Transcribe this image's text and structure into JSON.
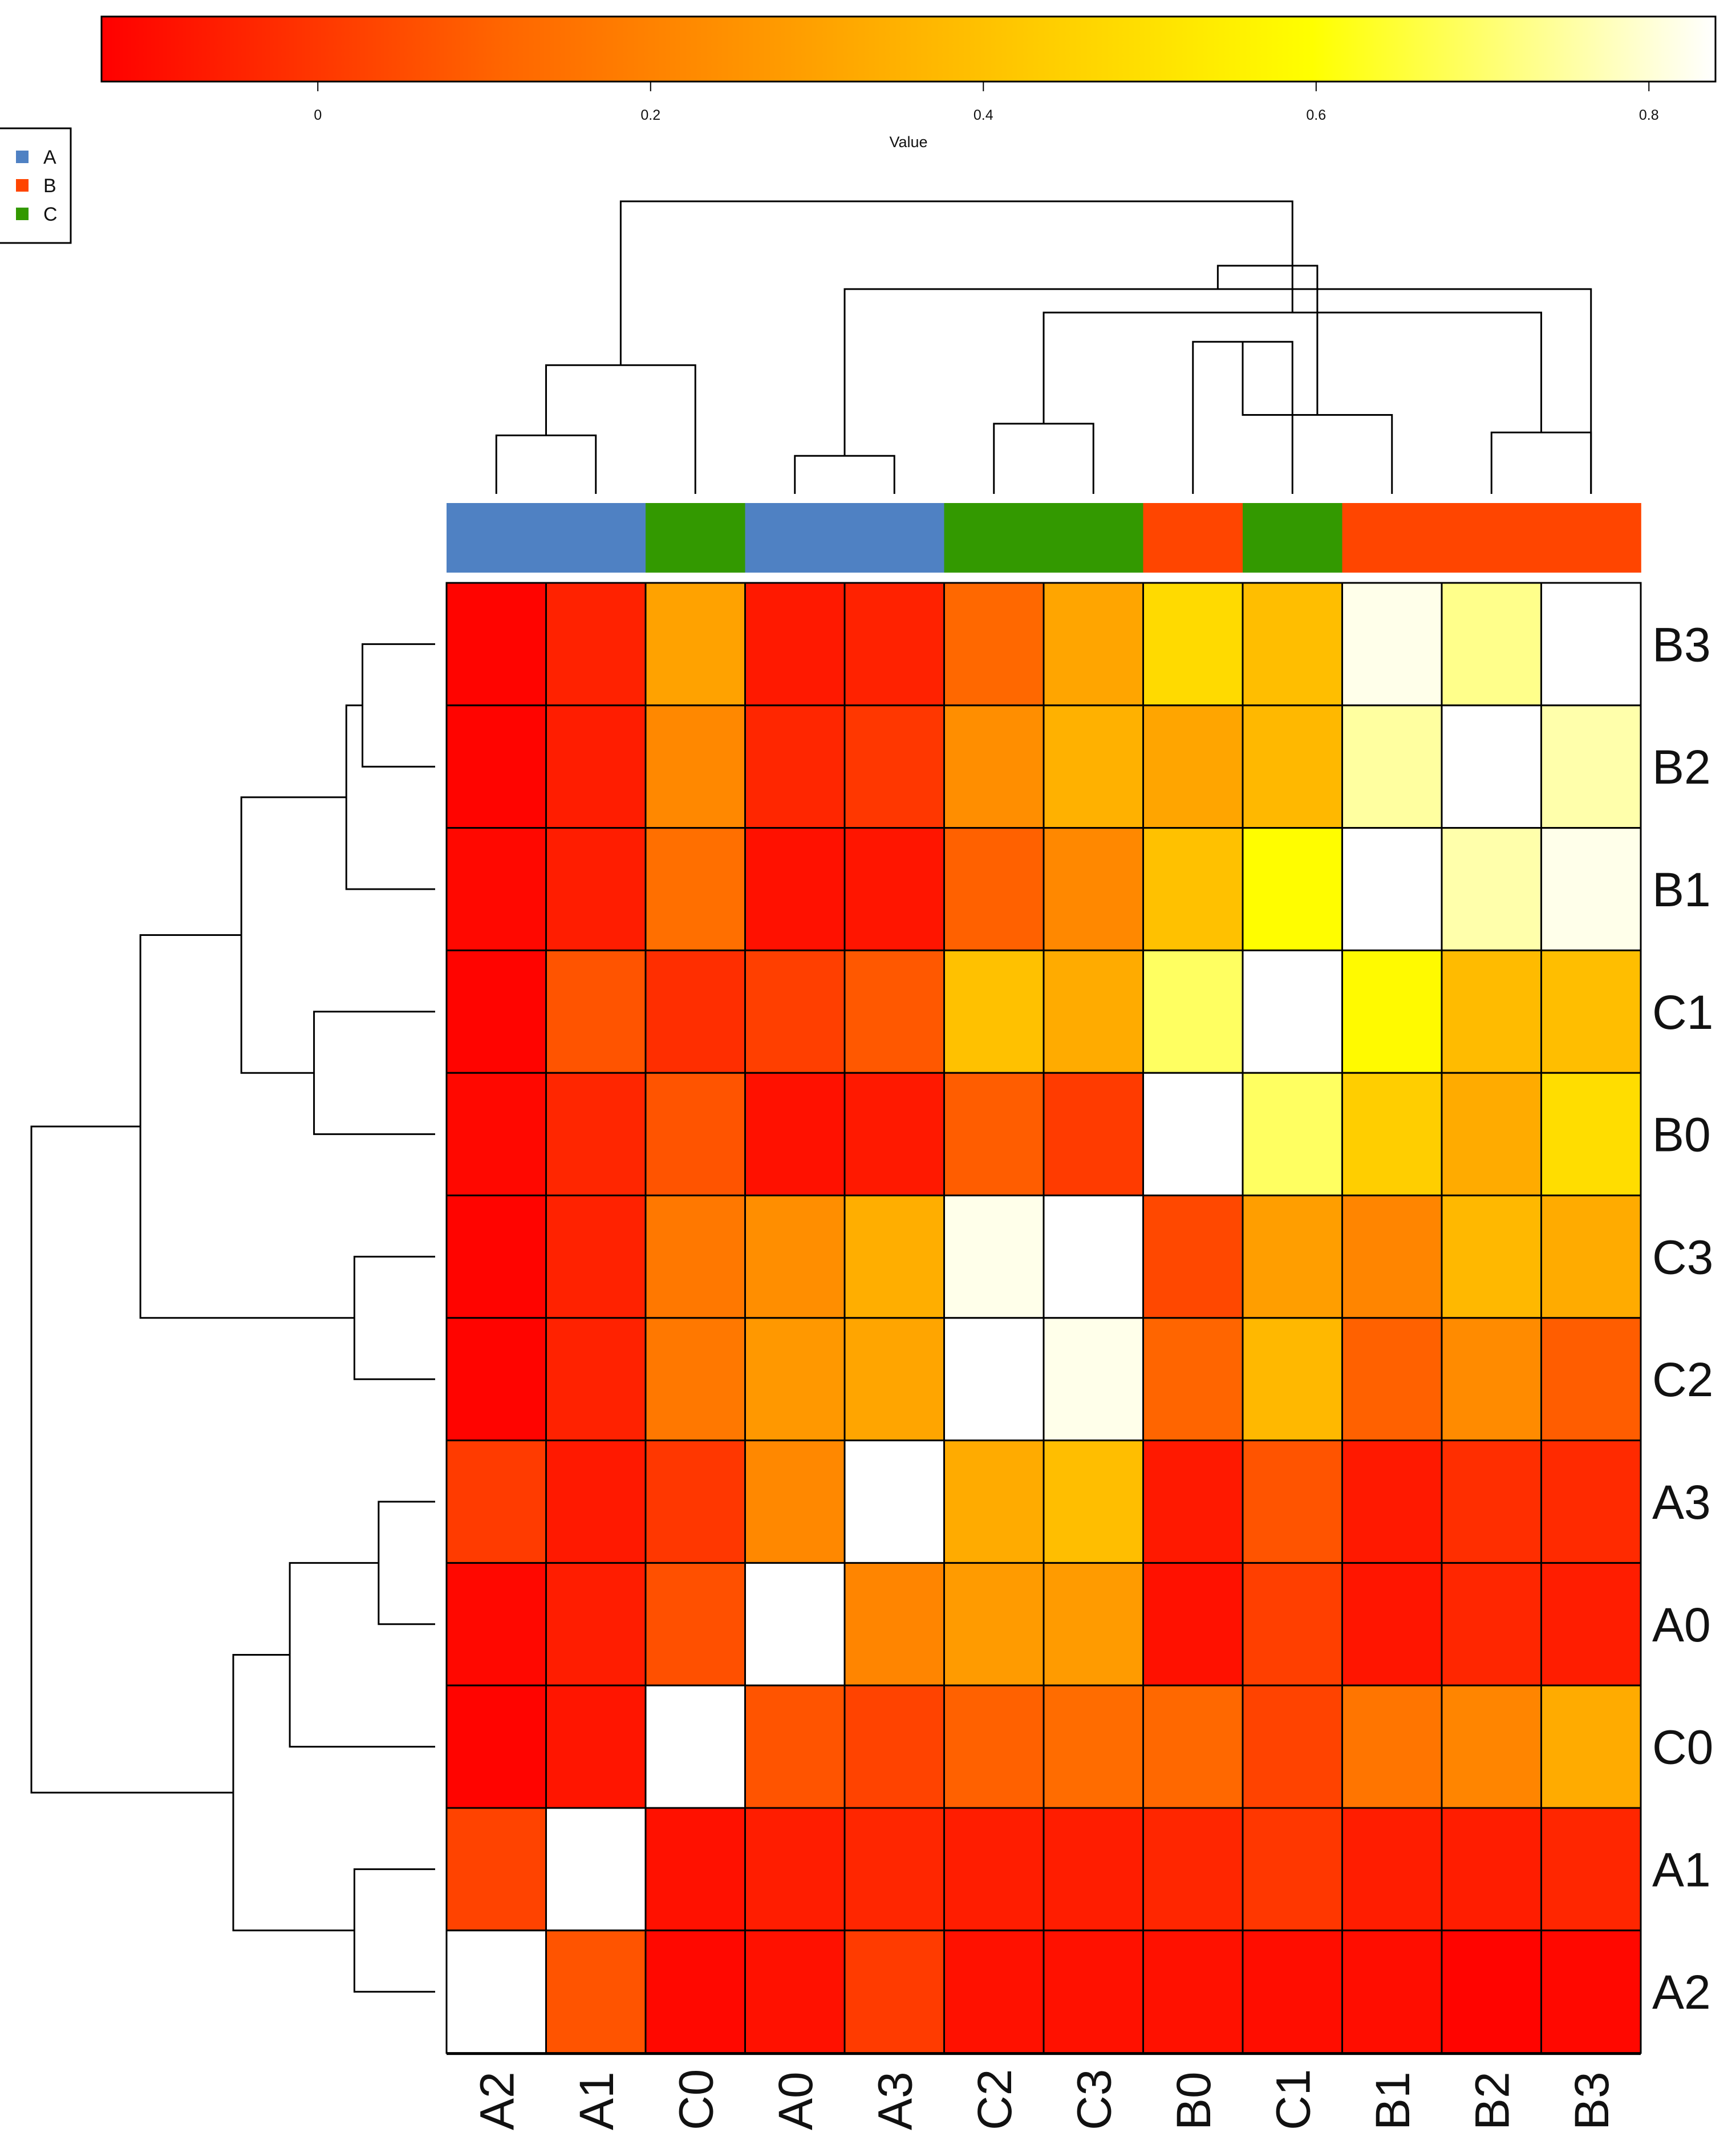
{
  "chart_data": {
    "type": "heatmap",
    "title": "",
    "colorbar": {
      "label": "Value",
      "ticks": [
        "0",
        "0.2",
        "0.4",
        "0.6",
        "0.8"
      ],
      "tick_values": [
        0,
        0.2,
        0.4,
        0.6,
        0.8
      ],
      "range": [
        -0.13,
        0.84
      ],
      "colormap": [
        "#ff0000",
        "#ff6600",
        "#ffb300",
        "#ffff00",
        "#ffffff"
      ]
    },
    "legend": {
      "position": "top-left",
      "entries": [
        {
          "label": "A",
          "color": "#4f81c3"
        },
        {
          "label": "B",
          "color": "#ff4500"
        },
        {
          "label": "C",
          "color": "#339900"
        }
      ]
    },
    "column_labels": [
      "A2",
      "A1",
      "C0",
      "A0",
      "A3",
      "C2",
      "C3",
      "B0",
      "C1",
      "B1",
      "B2",
      "B3"
    ],
    "column_groups": [
      "A",
      "A",
      "C",
      "A",
      "A",
      "C",
      "C",
      "B",
      "C",
      "B",
      "B",
      "B"
    ],
    "row_labels": [
      "B3",
      "B2",
      "B1",
      "C1",
      "B0",
      "C3",
      "C2",
      "A3",
      "A0",
      "C0",
      "A1",
      "A2"
    ],
    "values": [
      [
        -0.12,
        -0.05,
        0.3,
        -0.07,
        -0.05,
        0.12,
        0.31,
        0.48,
        0.39,
        0.82,
        0.73,
        0.84
      ],
      [
        -0.12,
        -0.06,
        0.22,
        -0.04,
        0.0,
        0.24,
        0.35,
        0.31,
        0.37,
        0.75,
        0.84,
        0.76
      ],
      [
        -0.11,
        -0.06,
        0.14,
        -0.09,
        -0.08,
        0.1,
        0.22,
        0.4,
        0.59,
        0.84,
        0.76,
        0.82
      ],
      [
        -0.12,
        0.07,
        -0.02,
        0.02,
        0.08,
        0.4,
        0.33,
        0.69,
        0.84,
        0.58,
        0.38,
        0.39
      ],
      [
        -0.11,
        -0.04,
        0.07,
        -0.09,
        -0.07,
        0.09,
        0.01,
        0.84,
        0.69,
        0.44,
        0.33,
        0.49
      ],
      [
        -0.12,
        -0.05,
        0.17,
        0.24,
        0.34,
        0.82,
        0.84,
        0.04,
        0.29,
        0.21,
        0.37,
        0.33
      ],
      [
        -0.12,
        -0.05,
        0.17,
        0.27,
        0.31,
        0.84,
        0.82,
        0.11,
        0.37,
        0.1,
        0.23,
        0.09
      ],
      [
        0.01,
        -0.07,
        0.0,
        0.22,
        0.84,
        0.33,
        0.39,
        -0.07,
        0.07,
        -0.07,
        -0.02,
        -0.03
      ],
      [
        -0.11,
        -0.06,
        0.06,
        0.84,
        0.21,
        0.28,
        0.28,
        -0.09,
        0.02,
        -0.08,
        -0.04,
        -0.06
      ],
      [
        -0.12,
        -0.08,
        0.84,
        0.07,
        0.03,
        0.1,
        0.13,
        0.12,
        0.03,
        0.16,
        0.21,
        0.33
      ],
      [
        0.03,
        0.84,
        -0.09,
        -0.06,
        -0.04,
        -0.06,
        -0.06,
        -0.04,
        0.0,
        -0.06,
        -0.06,
        -0.04
      ],
      [
        0.84,
        0.07,
        -0.11,
        -0.09,
        0.01,
        -0.09,
        -0.09,
        -0.09,
        -0.1,
        -0.1,
        -0.12,
        -0.11
      ]
    ],
    "column_dendrogram": [
      [
        1,
        2,
        0.2
      ],
      [
        4,
        5,
        0.13
      ],
      [
        3,
        13,
        0.44
      ],
      [
        12,
        14,
        0.7
      ],
      [
        6,
        7,
        0.24
      ],
      [
        8,
        9,
        0.52
      ],
      [
        11,
        12,
        0.21
      ],
      [
        10,
        18,
        0.27
      ],
      [
        17,
        19,
        0.62
      ],
      [
        16,
        20,
        0.78
      ],
      [
        15,
        21,
        1.0
      ]
    ],
    "row_dendrogram": [
      [
        1,
        2,
        0.18
      ],
      [
        3,
        13,
        0.22
      ],
      [
        4,
        5,
        0.3
      ],
      [
        14,
        15,
        0.48
      ],
      [
        6,
        7,
        0.2
      ],
      [
        16,
        17,
        0.73
      ],
      [
        8,
        9,
        0.14
      ],
      [
        10,
        19,
        0.36
      ],
      [
        11,
        12,
        0.2
      ],
      [
        20,
        21,
        0.5
      ],
      [
        18,
        22,
        1.0
      ]
    ]
  }
}
